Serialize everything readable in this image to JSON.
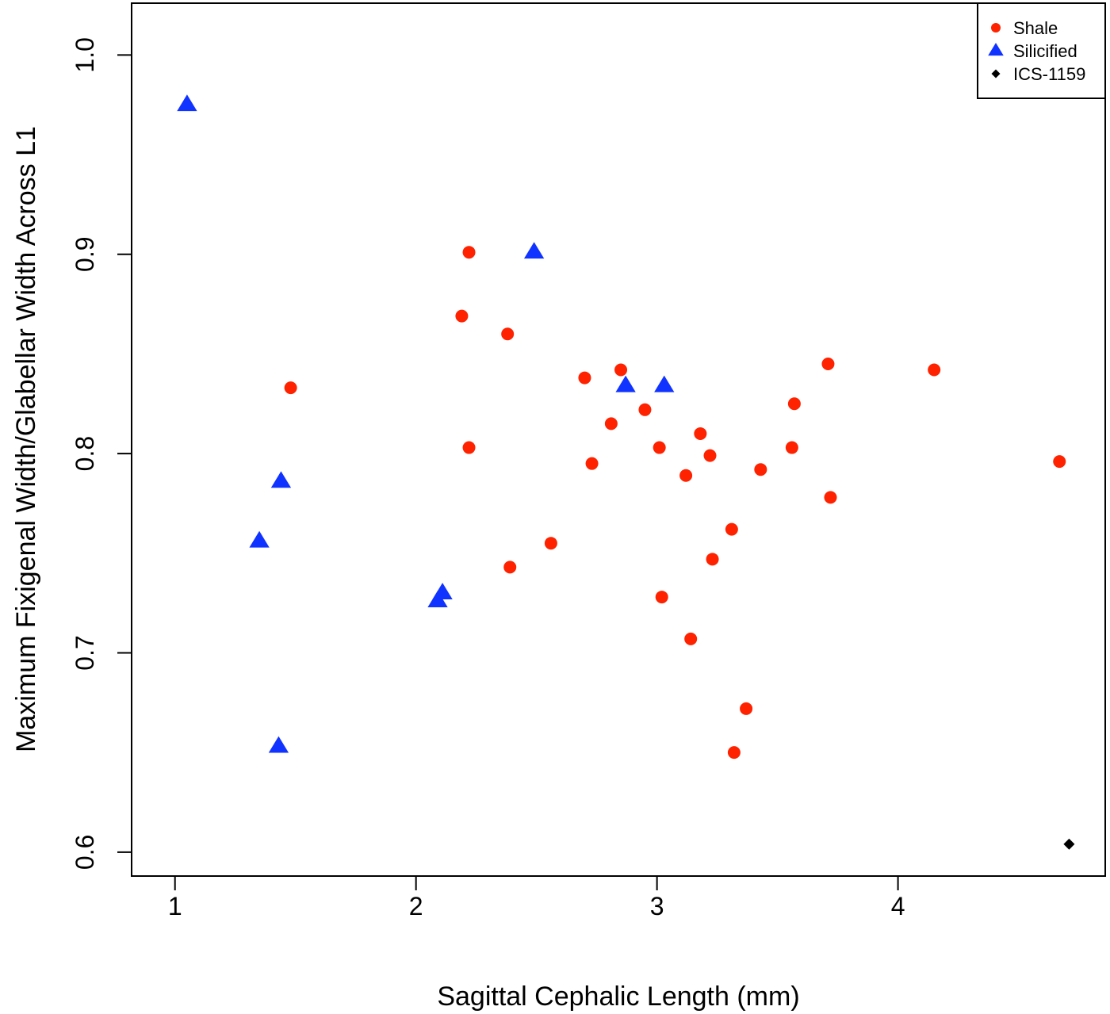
{
  "chart_data": {
    "type": "scatter",
    "xlabel": "Sagittal Cephalic Length (mm)",
    "ylabel": "Maximum Fixigenal Width/Glabellar Width Across L1",
    "xlim": [
      0.82,
      4.86
    ],
    "ylim": [
      0.588,
      1.026
    ],
    "xticks": [
      "1",
      "2",
      "3",
      "4"
    ],
    "yticks": [
      "0.6",
      "0.7",
      "0.8",
      "0.9",
      "1.0"
    ],
    "legend_position": "top-right",
    "grid": false,
    "series": [
      {
        "name": "Shale",
        "marker": "circle",
        "color": "#ff2200",
        "points": [
          [
            1.48,
            0.833
          ],
          [
            2.22,
            0.901
          ],
          [
            2.19,
            0.869
          ],
          [
            2.38,
            0.86
          ],
          [
            2.22,
            0.803
          ],
          [
            2.39,
            0.743
          ],
          [
            2.56,
            0.755
          ],
          [
            2.7,
            0.838
          ],
          [
            2.73,
            0.795
          ],
          [
            2.81,
            0.815
          ],
          [
            2.85,
            0.842
          ],
          [
            2.95,
            0.822
          ],
          [
            3.01,
            0.803
          ],
          [
            3.02,
            0.728
          ],
          [
            3.12,
            0.789
          ],
          [
            3.14,
            0.707
          ],
          [
            3.18,
            0.81
          ],
          [
            3.22,
            0.799
          ],
          [
            3.23,
            0.747
          ],
          [
            3.31,
            0.762
          ],
          [
            3.32,
            0.65
          ],
          [
            3.37,
            0.672
          ],
          [
            3.43,
            0.792
          ],
          [
            3.56,
            0.803
          ],
          [
            3.57,
            0.825
          ],
          [
            3.71,
            0.845
          ],
          [
            3.72,
            0.778
          ],
          [
            4.15,
            0.842
          ],
          [
            4.67,
            0.796
          ]
        ]
      },
      {
        "name": "Silicified",
        "marker": "triangle",
        "color": "#1133ff",
        "points": [
          [
            1.05,
            0.975
          ],
          [
            1.35,
            0.756
          ],
          [
            1.44,
            0.786
          ],
          [
            1.43,
            0.653
          ],
          [
            2.09,
            0.726
          ],
          [
            2.11,
            0.73
          ],
          [
            2.49,
            0.901
          ],
          [
            2.87,
            0.834
          ],
          [
            3.03,
            0.834
          ]
        ]
      },
      {
        "name": "ICS-1159",
        "marker": "diamond",
        "color": "#000000",
        "points": [
          [
            4.71,
            0.604
          ]
        ]
      }
    ]
  }
}
